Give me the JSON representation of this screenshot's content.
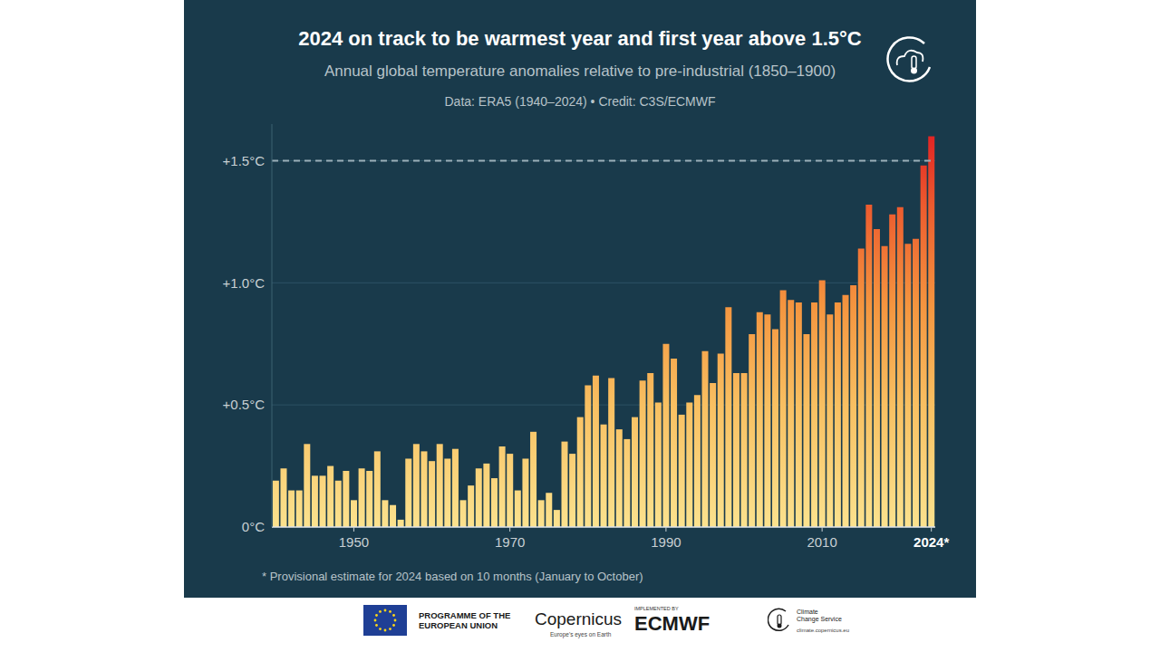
{
  "chart_data": {
    "type": "bar",
    "title": "2024 on track to be warmest year and first year above 1.5°C",
    "subtitle": "Annual global temperature anomalies relative to pre-industrial (1850–1900)",
    "source": "Data: ERA5 (1940–2024) • Credit: C3S/ECMWF",
    "footnote": "* Provisional estimate for 2024 based on 10 months (January to October)",
    "categories": [
      null,
      null,
      null,
      null,
      null,
      null,
      null,
      null,
      null,
      null,
      "1950",
      null,
      null,
      null,
      null,
      null,
      null,
      null,
      null,
      null,
      null,
      null,
      null,
      null,
      null,
      null,
      null,
      null,
      null,
      null,
      "1970",
      null,
      null,
      null,
      null,
      null,
      null,
      null,
      null,
      null,
      null,
      null,
      null,
      null,
      null,
      null,
      null,
      null,
      null,
      null,
      "1990",
      null,
      null,
      null,
      null,
      null,
      null,
      null,
      null,
      null,
      null,
      null,
      null,
      null,
      null,
      null,
      null,
      null,
      null,
      null,
      "2010",
      null,
      null,
      null,
      null,
      null,
      null,
      null,
      null,
      null,
      null,
      null,
      null,
      null,
      "2024*"
    ],
    "values": [
      0.19,
      0.24,
      0.15,
      0.15,
      0.34,
      0.21,
      0.21,
      0.25,
      0.19,
      0.23,
      0.11,
      0.24,
      0.23,
      0.31,
      0.11,
      0.09,
      0.03,
      0.28,
      0.34,
      0.31,
      0.27,
      0.34,
      0.28,
      0.32,
      0.11,
      0.17,
      0.24,
      0.26,
      0.2,
      0.33,
      0.3,
      0.15,
      0.28,
      0.39,
      0.11,
      0.14,
      0.07,
      0.35,
      0.3,
      0.45,
      0.58,
      0.62,
      0.42,
      0.61,
      0.4,
      0.36,
      0.45,
      0.6,
      0.63,
      0.51,
      0.75,
      0.69,
      0.46,
      0.51,
      0.54,
      0.72,
      0.59,
      0.71,
      0.9,
      0.63,
      0.63,
      0.79,
      0.88,
      0.87,
      0.81,
      0.97,
      0.93,
      0.92,
      0.79,
      0.92,
      1.01,
      0.87,
      0.92,
      0.95,
      0.99,
      1.14,
      1.32,
      1.22,
      1.15,
      1.28,
      1.31,
      1.16,
      1.18,
      1.48,
      1.6
    ],
    "ylim": [
      0,
      1.65
    ],
    "yticks": [
      {
        "value": 0,
        "label": "0°C"
      },
      {
        "value": 0.5,
        "label": "+0.5°C"
      },
      {
        "value": 1.0,
        "label": "+1.0°C"
      },
      {
        "value": 1.5,
        "label": "+1.5°C"
      }
    ],
    "reference_line": 1.5,
    "grid": true
  },
  "footer": {
    "eu_line1": "PROGRAMME OF THE",
    "eu_line2": "EUROPEAN UNION",
    "copernicus": "Copernicus",
    "copernicus_tagline": "Europe's eyes on Earth",
    "implemented_by": "IMPLEMENTED BY",
    "ecmwf": "ECMWF",
    "c3s_line1": "Climate",
    "c3s_line2": "Change Service",
    "c3s_url": "climate.copernicus.eu"
  }
}
